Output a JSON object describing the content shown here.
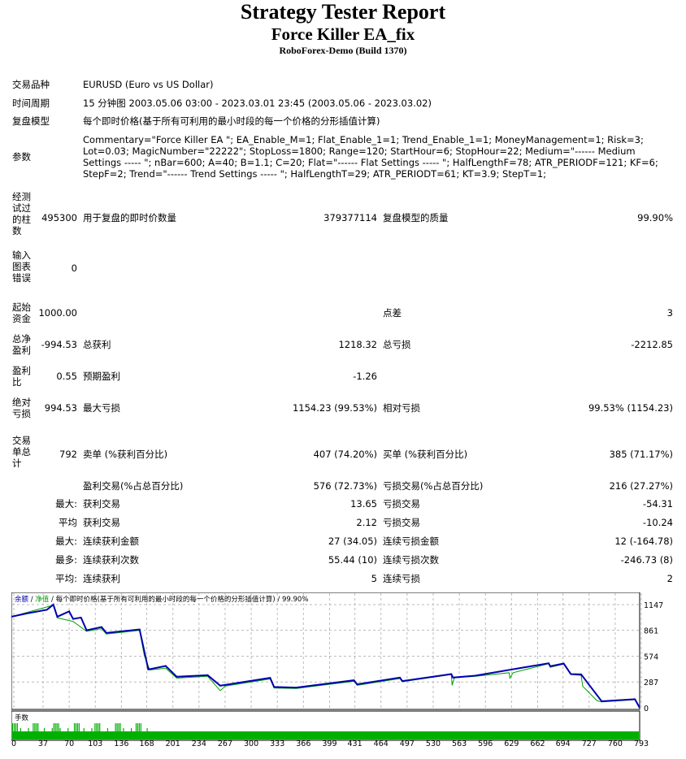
{
  "header": {
    "title": "Strategy Tester Report",
    "ea": "Force Killer EA_fix",
    "server": "RoboForex-Demo (Build 1370)"
  },
  "info": [
    {
      "label": "交易品种",
      "value": "EURUSD (Euro vs US Dollar)"
    },
    {
      "label": "时间周期",
      "value": "15 分钟图 2003.05.06 03:00 - 2023.03.01 23:45 (2003.05.06 - 2023.03.02)"
    },
    {
      "label": "复盘模型",
      "value": "每个即时价格(基于所有可利用的最小时段的每一个价格的分形插值计算)"
    },
    {
      "label": "参数",
      "value": "Commentary=\"Force Killer EA \"; EA_Enable_M=1; Flat_Enable_1=1; Trend_Enable_1=1; MoneyManagement=1; Risk=3; Lot=0.03; MagicNumber=\"22222\"; StopLoss=1800; Range=120; StartHour=6; StopHour=22; Medium=\"------ Medium Settings ----- \"; nBar=600; A=40; B=1.1; C=20; Flat=\"------ Flat Settings ----- \"; HalfLengthF=78; ATR_PERIODF=121; KF=6; StepF=2; Trend=\"------ Trend Settings ----- \"; HalfLengthT=29; ATR_PERIODT=61; KT=3.9; StepT=1;"
    }
  ],
  "stats": {
    "bars_label": "经测试过的柱数",
    "bars": "495300",
    "ticks_label": "用于复盘的即时价数量",
    "ticks": "379377114",
    "quality_label": "复盘模型的质量",
    "quality": "99.90%",
    "errors_label": "输入图表错误",
    "errors": "0",
    "deposit_label": "起始资金",
    "deposit": "1000.00",
    "spread_label": "点差",
    "spread": "3",
    "net_label": "总净盈利",
    "net": "-994.53",
    "gross_profit_label": "总获利",
    "gross_profit": "1218.32",
    "gross_loss_label": "总亏损",
    "gross_loss": "-2212.85",
    "pf_label": "盈利比",
    "pf": "0.55",
    "expected_label": "预期盈利",
    "expected": "-1.26",
    "abs_dd_label": "绝对亏损",
    "abs_dd": "994.53",
    "max_dd_label": "最大亏损",
    "max_dd": "1154.23 (99.53%)",
    "rel_dd_label": "相对亏损",
    "rel_dd": "99.53% (1154.23)",
    "trades_label": "交易单总计",
    "trades": "792",
    "short_label": "卖单 (%获利百分比)",
    "short": "407 (74.20%)",
    "long_label": "买单 (%获利百分比)",
    "long": "385 (71.17%)",
    "profit_trades_label": "盈利交易(%占总百分比)",
    "profit_trades": "576 (72.73%)",
    "loss_trades_label": "亏损交易(%占总百分比)",
    "loss_trades": "216 (27.27%)",
    "largest_prefix": "最大:",
    "largest_profit_label": "获利交易",
    "largest_profit": "13.65",
    "largest_loss_label": "亏损交易",
    "largest_loss": "-54.31",
    "avg_prefix": "平均",
    "avg_profit_label": "获利交易",
    "avg_profit": "2.12",
    "avg_loss_label": "亏损交易",
    "avg_loss": "-10.24",
    "max_cons_prefix": "最大:",
    "max_cons_wins_label": "连续获利金额",
    "max_cons_wins": "27 (34.05)",
    "max_cons_losses_label": "连续亏损金额",
    "max_cons_losses": "12 (-164.78)",
    "most_prefix": "最多:",
    "max_cons_profit_label": "连续获利次数",
    "max_cons_profit": "55.44 (10)",
    "max_cons_loss_label": "连续亏损次数",
    "max_cons_loss": "-246.73 (8)",
    "avg2_prefix": "平均:",
    "avg_cons_wins_label": "连续获利",
    "avg_cons_wins": "5",
    "avg_cons_losses_label": "连续亏损",
    "avg_cons_losses": "2"
  },
  "chart_data": {
    "type": "line",
    "legend": {
      "balance": "余额",
      "sep": " / ",
      "equity": "净值",
      "rest": " / 每个即时价格(基于所有可利用的最小时段的每一个价格的分形插值计算) / 99.90%"
    },
    "volume_label": "手数",
    "colors": {
      "balance": "#0000b0",
      "equity": "#00a000",
      "volume": "#00b000"
    },
    "x_ticks": [
      0,
      37,
      70,
      103,
      136,
      168,
      201,
      234,
      267,
      300,
      333,
      366,
      399,
      431,
      464,
      497,
      530,
      563,
      596,
      629,
      662,
      694,
      727,
      760,
      793
    ],
    "y_ticks": [
      0,
      287,
      574,
      861,
      1147
    ],
    "xlim": [
      0,
      794
    ],
    "ylim": [
      0,
      1240
    ],
    "series": [
      {
        "name": "余额",
        "points": [
          [
            0,
            1012
          ],
          [
            20,
            1050
          ],
          [
            45,
            1090
          ],
          [
            53,
            1147
          ],
          [
            58,
            1012
          ],
          [
            73,
            1072
          ],
          [
            78,
            988
          ],
          [
            88,
            1003
          ],
          [
            95,
            862
          ],
          [
            114,
            898
          ],
          [
            120,
            832
          ],
          [
            162,
            871
          ],
          [
            173,
            426
          ],
          [
            195,
            465
          ],
          [
            209,
            345
          ],
          [
            248,
            363
          ],
          [
            264,
            246
          ],
          [
            327,
            333
          ],
          [
            332,
            231
          ],
          [
            360,
            225
          ],
          [
            433,
            306
          ],
          [
            437,
            261
          ],
          [
            491,
            336
          ],
          [
            494,
            297
          ],
          [
            556,
            375
          ],
          [
            558,
            336
          ],
          [
            586,
            357
          ],
          [
            679,
            495
          ],
          [
            681,
            462
          ],
          [
            698,
            492
          ],
          [
            707,
            375
          ],
          [
            720,
            372
          ],
          [
            746,
            72
          ],
          [
            788,
            96
          ],
          [
            794,
            0
          ]
        ]
      },
      {
        "name": "净值",
        "points": [
          [
            0,
            1012
          ],
          [
            53,
            1140
          ],
          [
            58,
            1000
          ],
          [
            78,
            960
          ],
          [
            95,
            850
          ],
          [
            114,
            880
          ],
          [
            120,
            820
          ],
          [
            162,
            860
          ],
          [
            168,
            580
          ],
          [
            175,
            420
          ],
          [
            195,
            440
          ],
          [
            209,
            330
          ],
          [
            248,
            350
          ],
          [
            264,
            190
          ],
          [
            270,
            240
          ],
          [
            327,
            320
          ],
          [
            332,
            220
          ],
          [
            360,
            215
          ],
          [
            433,
            295
          ],
          [
            437,
            250
          ],
          [
            491,
            325
          ],
          [
            494,
            290
          ],
          [
            556,
            370
          ],
          [
            557,
            250
          ],
          [
            560,
            335
          ],
          [
            586,
            350
          ],
          [
            629,
            390
          ],
          [
            630,
            330
          ],
          [
            634,
            390
          ],
          [
            679,
            490
          ],
          [
            681,
            450
          ],
          [
            698,
            485
          ],
          [
            707,
            370
          ],
          [
            720,
            360
          ],
          [
            722,
            240
          ],
          [
            740,
            80
          ],
          [
            746,
            65
          ],
          [
            788,
            90
          ],
          [
            794,
            0
          ]
        ]
      }
    ]
  }
}
